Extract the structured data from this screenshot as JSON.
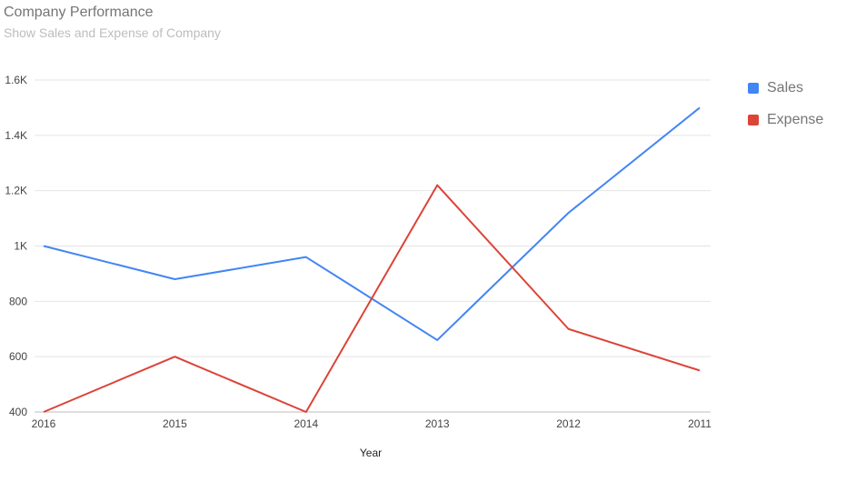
{
  "title": "Company Performance",
  "subtitle": "Show Sales and Expense of Company",
  "chart_data": {
    "type": "line",
    "title": "Company Performance",
    "subtitle": "Show Sales and Expense of Company",
    "xlabel": "Year",
    "ylabel": "",
    "categories": [
      "2016",
      "2015",
      "2014",
      "2013",
      "2012",
      "2011"
    ],
    "series": [
      {
        "name": "Sales",
        "color": "#4285f4",
        "values": [
          1000,
          880,
          960,
          660,
          1120,
          1500
        ]
      },
      {
        "name": "Expense",
        "color": "#db4437",
        "values": [
          400,
          600,
          400,
          1220,
          700,
          550
        ]
      }
    ],
    "ylim": [
      400,
      1600
    ],
    "yticks": [
      400,
      600,
      800,
      1000,
      1200,
      1400,
      1600
    ],
    "ytick_labels": [
      "400",
      "600",
      "800",
      "1K",
      "1.2K",
      "1.4K",
      "1.6K"
    ],
    "grid": true,
    "legend": "right"
  }
}
